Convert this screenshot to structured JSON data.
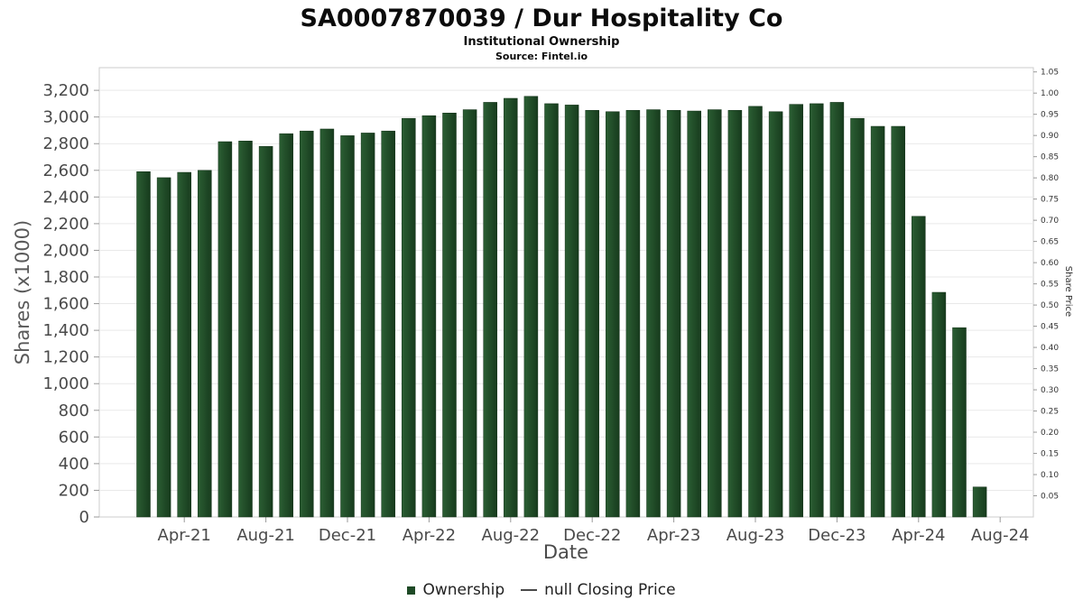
{
  "header": {
    "title": "SA0007870039 / Dur Hospitality Co",
    "subtitle": "Institutional Ownership",
    "source": "Source: Fintel.io"
  },
  "chart_data": {
    "type": "bar",
    "title": "SA0007870039 / Dur Hospitality Co",
    "subtitle": "Institutional Ownership",
    "source": "Source: Fintel.io",
    "xlabel": "Date",
    "ylabel_left": "Shares (x1000)",
    "ylabel_right": "Share Price",
    "ylim_left": [
      0,
      3370
    ],
    "ylim_right": [
      0,
      1.06
    ],
    "grid": "horizontal",
    "legend_position": "bottom",
    "bar_color": "#1e4a26",
    "left_ticks": [
      0,
      200,
      400,
      600,
      800,
      1000,
      1200,
      1400,
      1600,
      1800,
      2000,
      2200,
      2400,
      2600,
      2800,
      3000,
      3200
    ],
    "right_ticks": [
      0.05,
      0.1,
      0.15,
      0.2,
      0.25,
      0.3,
      0.35,
      0.4,
      0.45,
      0.5,
      0.55,
      0.6,
      0.65,
      0.7,
      0.75,
      0.8,
      0.85,
      0.9,
      0.95,
      1.0,
      1.05
    ],
    "x_ticks": [
      {
        "index": 2,
        "label": "Apr-21"
      },
      {
        "index": 6,
        "label": "Aug-21"
      },
      {
        "index": 10,
        "label": "Dec-21"
      },
      {
        "index": 14,
        "label": "Apr-22"
      },
      {
        "index": 18,
        "label": "Aug-22"
      },
      {
        "index": 22,
        "label": "Dec-22"
      },
      {
        "index": 26,
        "label": "Apr-23"
      },
      {
        "index": 30,
        "label": "Aug-23"
      },
      {
        "index": 34,
        "label": "Dec-23"
      },
      {
        "index": 38,
        "label": "Apr-24"
      },
      {
        "index": 42,
        "label": "Aug-24"
      }
    ],
    "categories": [
      "Feb-21",
      "Mar-21",
      "Apr-21",
      "May-21",
      "Jun-21",
      "Jul-21",
      "Aug-21",
      "Sep-21",
      "Oct-21",
      "Nov-21",
      "Dec-21",
      "Jan-22",
      "Feb-22",
      "Mar-22",
      "Apr-22",
      "May-22",
      "Jun-22",
      "Jul-22",
      "Aug-22",
      "Sep-22",
      "Oct-22",
      "Nov-22",
      "Dec-22",
      "Jan-23",
      "Feb-23",
      "Mar-23",
      "Apr-23",
      "May-23",
      "Jun-23",
      "Jul-23",
      "Aug-23",
      "Sep-23",
      "Oct-23",
      "Nov-23",
      "Dec-23",
      "Jan-24",
      "Feb-24",
      "Mar-24",
      "Apr-24",
      "May-24",
      "Jun-24",
      "Jul-24"
    ],
    "values": [
      2590,
      2545,
      2585,
      2600,
      2815,
      2820,
      2780,
      2875,
      2895,
      2910,
      2860,
      2880,
      2895,
      2990,
      3010,
      3030,
      3055,
      3110,
      3140,
      3155,
      3100,
      3090,
      3050,
      3040,
      3050,
      3055,
      3050,
      3045,
      3055,
      3050,
      3080,
      3040,
      3095,
      3100,
      3110,
      2990,
      2930,
      2930,
      2255,
      1685,
      1420,
      225
    ],
    "series_name": "Ownership"
  },
  "legend": {
    "ownership_label": "Ownership",
    "price_label": "null Closing Price"
  }
}
